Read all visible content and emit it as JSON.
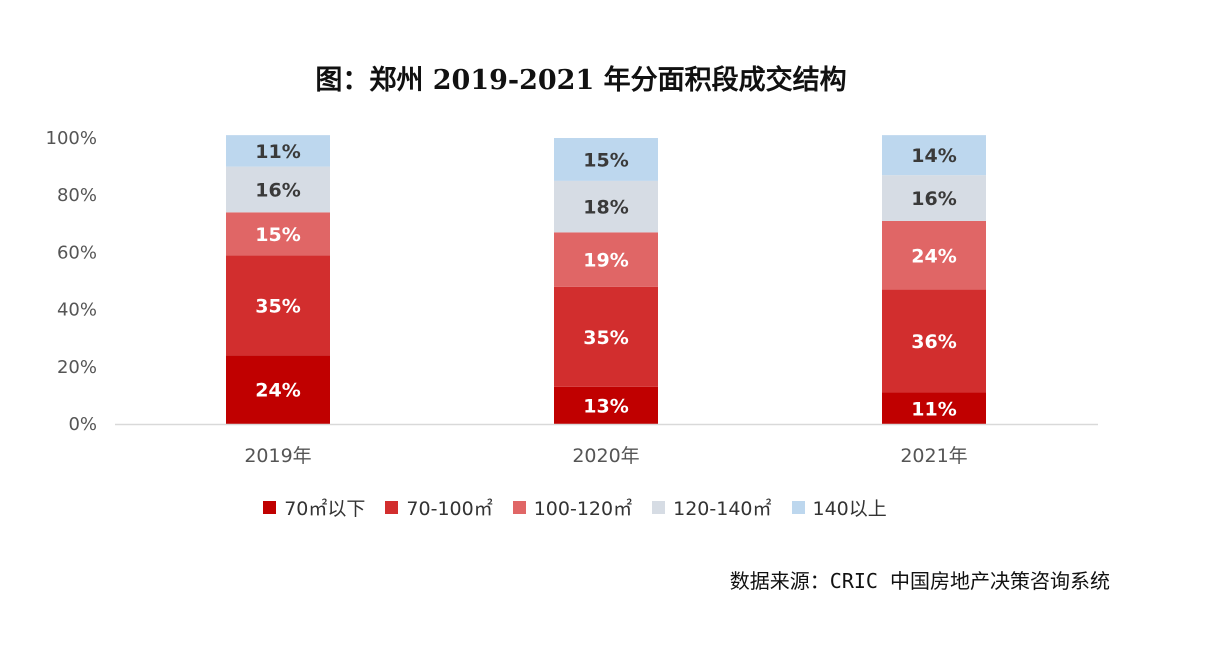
{
  "chart_data": {
    "type": "bar",
    "stacked": true,
    "title": "图：郑州 2019-2021 年分面积段成交结构",
    "categories": [
      "2019年",
      "2020年",
      "2021年"
    ],
    "ylim": [
      0,
      100
    ],
    "yticks": [
      "0%",
      "20%",
      "40%",
      "60%",
      "80%",
      "100%"
    ],
    "legend_position": "bottom",
    "grid": false,
    "series": [
      {
        "name": "70㎡以下",
        "color": "#c00000",
        "values": [
          24,
          13,
          11
        ],
        "labels": [
          "24%",
          "13%",
          "11%"
        ]
      },
      {
        "name": "70-100㎡",
        "color": "#d22e2e",
        "values": [
          35,
          35,
          36
        ],
        "labels": [
          "35%",
          "35%",
          "36%"
        ]
      },
      {
        "name": "100-120㎡",
        "color": "#e06666",
        "values": [
          15,
          19,
          24
        ],
        "labels": [
          "15%",
          "19%",
          "24%"
        ]
      },
      {
        "name": "120-140㎡",
        "color": "#d6dce4",
        "values": [
          16,
          18,
          16
        ],
        "labels": [
          "16%",
          "18%",
          "16%"
        ]
      },
      {
        "name": "140以上",
        "color": "#bdd7ee",
        "values": [
          11,
          15,
          14
        ],
        "labels": [
          "11%",
          "15%",
          "14%"
        ]
      }
    ]
  },
  "source_note": "数据来源：CRIC 中国房地产决策咨询系统"
}
